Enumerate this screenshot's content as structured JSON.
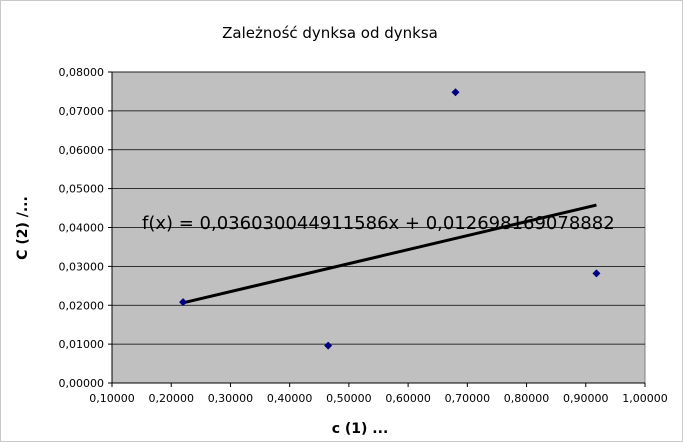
{
  "chart_data": {
    "type": "scatter",
    "title": "Zależność dynksa od dynksa",
    "xlabel": "c (1) ...",
    "ylabel": "C (2) /...",
    "xlim": [
      0.1,
      1.0
    ],
    "ylim": [
      0.0,
      0.08
    ],
    "x_ticks": [
      "0,10000",
      "0,20000",
      "0,30000",
      "0,40000",
      "0,50000",
      "0,60000",
      "0,70000",
      "0,80000",
      "0,90000",
      "1,00000"
    ],
    "y_ticks": [
      "0,00000",
      "0,01000",
      "0,02000",
      "0,03000",
      "0,04000",
      "0,05000",
      "0,06000",
      "0,07000",
      "0,08000"
    ],
    "grid": "horizontal",
    "plot_background": "#c0c0c0",
    "series": [
      {
        "color": "#000080",
        "marker": "diamond",
        "points": [
          {
            "x": 0.22,
            "y": 0.0208
          },
          {
            "x": 0.465,
            "y": 0.0096
          },
          {
            "x": 0.68,
            "y": 0.0748
          },
          {
            "x": 0.918,
            "y": 0.0282
          }
        ]
      }
    ],
    "trendline": {
      "color": "#000000",
      "slope": 0.036030044911586,
      "intercept": 0.01269816907888,
      "x_range": [
        0.22,
        0.918
      ],
      "equation_label": "f(x) = 0,036030044911586x + 0,012698169078882"
    }
  }
}
